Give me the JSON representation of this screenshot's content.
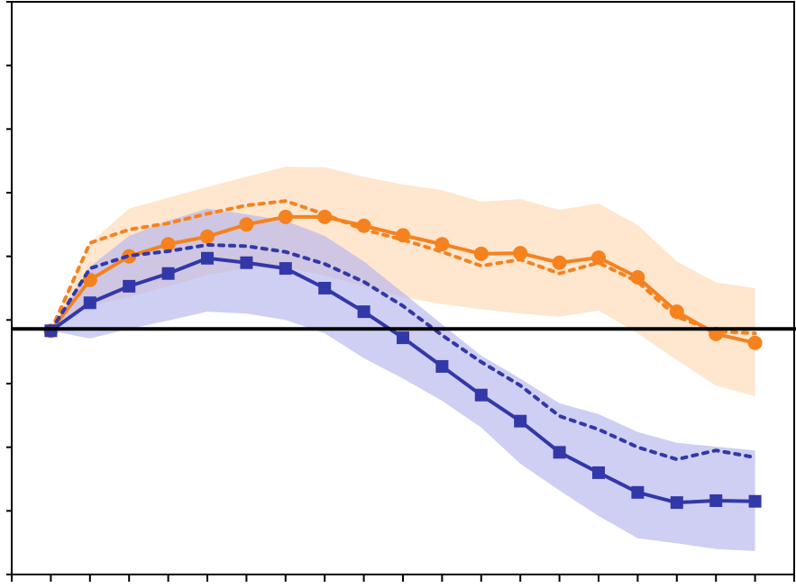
{
  "chart_data": {
    "type": "line",
    "x": [
      1,
      2,
      3,
      4,
      5,
      6,
      7,
      8,
      9,
      10,
      11,
      12,
      13,
      14,
      15,
      16,
      17,
      18,
      19
    ],
    "xlim": [
      0,
      20
    ],
    "xticks": [
      0,
      1,
      2,
      3,
      4,
      5,
      6,
      7,
      8,
      9,
      10,
      11,
      12,
      13,
      14,
      15,
      16,
      17,
      18,
      19,
      20
    ],
    "ylim": [
      -4,
      5
    ],
    "yticks": [
      -4,
      -3,
      -2,
      -1,
      0,
      1,
      2,
      3,
      4,
      5
    ],
    "hline": -0.14,
    "hline_color": "#000000",
    "bands": [
      {
        "color": "#fdd9b5",
        "upper": [
          -0.17,
          1.21,
          1.75,
          1.92,
          2.09,
          2.25,
          2.41,
          2.4,
          2.25,
          2.13,
          2.04,
          1.86,
          1.9,
          1.73,
          1.83,
          1.49,
          0.92,
          0.59,
          0.5
        ],
        "lower": [
          -0.17,
          0.22,
          0.36,
          0.53,
          0.71,
          0.81,
          0.83,
          0.7,
          0.53,
          0.36,
          0.25,
          0.17,
          0.1,
          0.05,
          0.15,
          -0.21,
          -0.63,
          -1.03,
          -1.2
        ]
      },
      {
        "color": "#b4b6ec",
        "upper": [
          -0.17,
          0.84,
          1.32,
          1.56,
          1.75,
          1.66,
          1.56,
          1.32,
          0.92,
          0.43,
          -0.07,
          -0.56,
          -0.92,
          -1.31,
          -1.48,
          -1.76,
          -1.93,
          -1.99,
          -2.05
        ],
        "lower": [
          -0.17,
          -0.29,
          -0.14,
          -0.01,
          0.13,
          0.1,
          0.0,
          -0.21,
          -0.6,
          -0.92,
          -1.27,
          -1.69,
          -2.26,
          -2.68,
          -3.08,
          -3.43,
          -3.51,
          -3.6,
          -3.63
        ]
      }
    ],
    "series": [
      {
        "color": "#f5821f",
        "dash": "dotted",
        "marker": "none",
        "values": [
          -0.17,
          1.21,
          1.42,
          1.52,
          1.67,
          1.8,
          1.87,
          1.66,
          1.42,
          1.26,
          1.07,
          0.85,
          0.95,
          0.73,
          0.9,
          0.6,
          0.05,
          -0.18,
          -0.21
        ]
      },
      {
        "color": "#f5821f",
        "dash": "solid",
        "marker": "circle",
        "values": [
          -0.17,
          0.63,
          1.0,
          1.19,
          1.31,
          1.5,
          1.62,
          1.62,
          1.48,
          1.33,
          1.19,
          1.04,
          1.05,
          0.9,
          0.98,
          0.67,
          0.13,
          -0.22,
          -0.36
        ]
      },
      {
        "color": "#3338a8",
        "dash": "dotted",
        "marker": "none",
        "values": [
          -0.17,
          0.81,
          1.01,
          1.08,
          1.18,
          1.16,
          1.07,
          0.88,
          0.6,
          0.22,
          -0.24,
          -0.66,
          -1.03,
          -1.51,
          -1.72,
          -2.0,
          -2.19,
          -2.05,
          -2.16
        ]
      },
      {
        "color": "#3338a8",
        "dash": "solid",
        "marker": "square",
        "values": [
          -0.17,
          0.27,
          0.53,
          0.73,
          0.97,
          0.9,
          0.81,
          0.5,
          0.13,
          -0.28,
          -0.73,
          -1.18,
          -1.59,
          -2.08,
          -2.4,
          -2.71,
          -2.87,
          -2.84,
          -2.85
        ]
      }
    ]
  }
}
